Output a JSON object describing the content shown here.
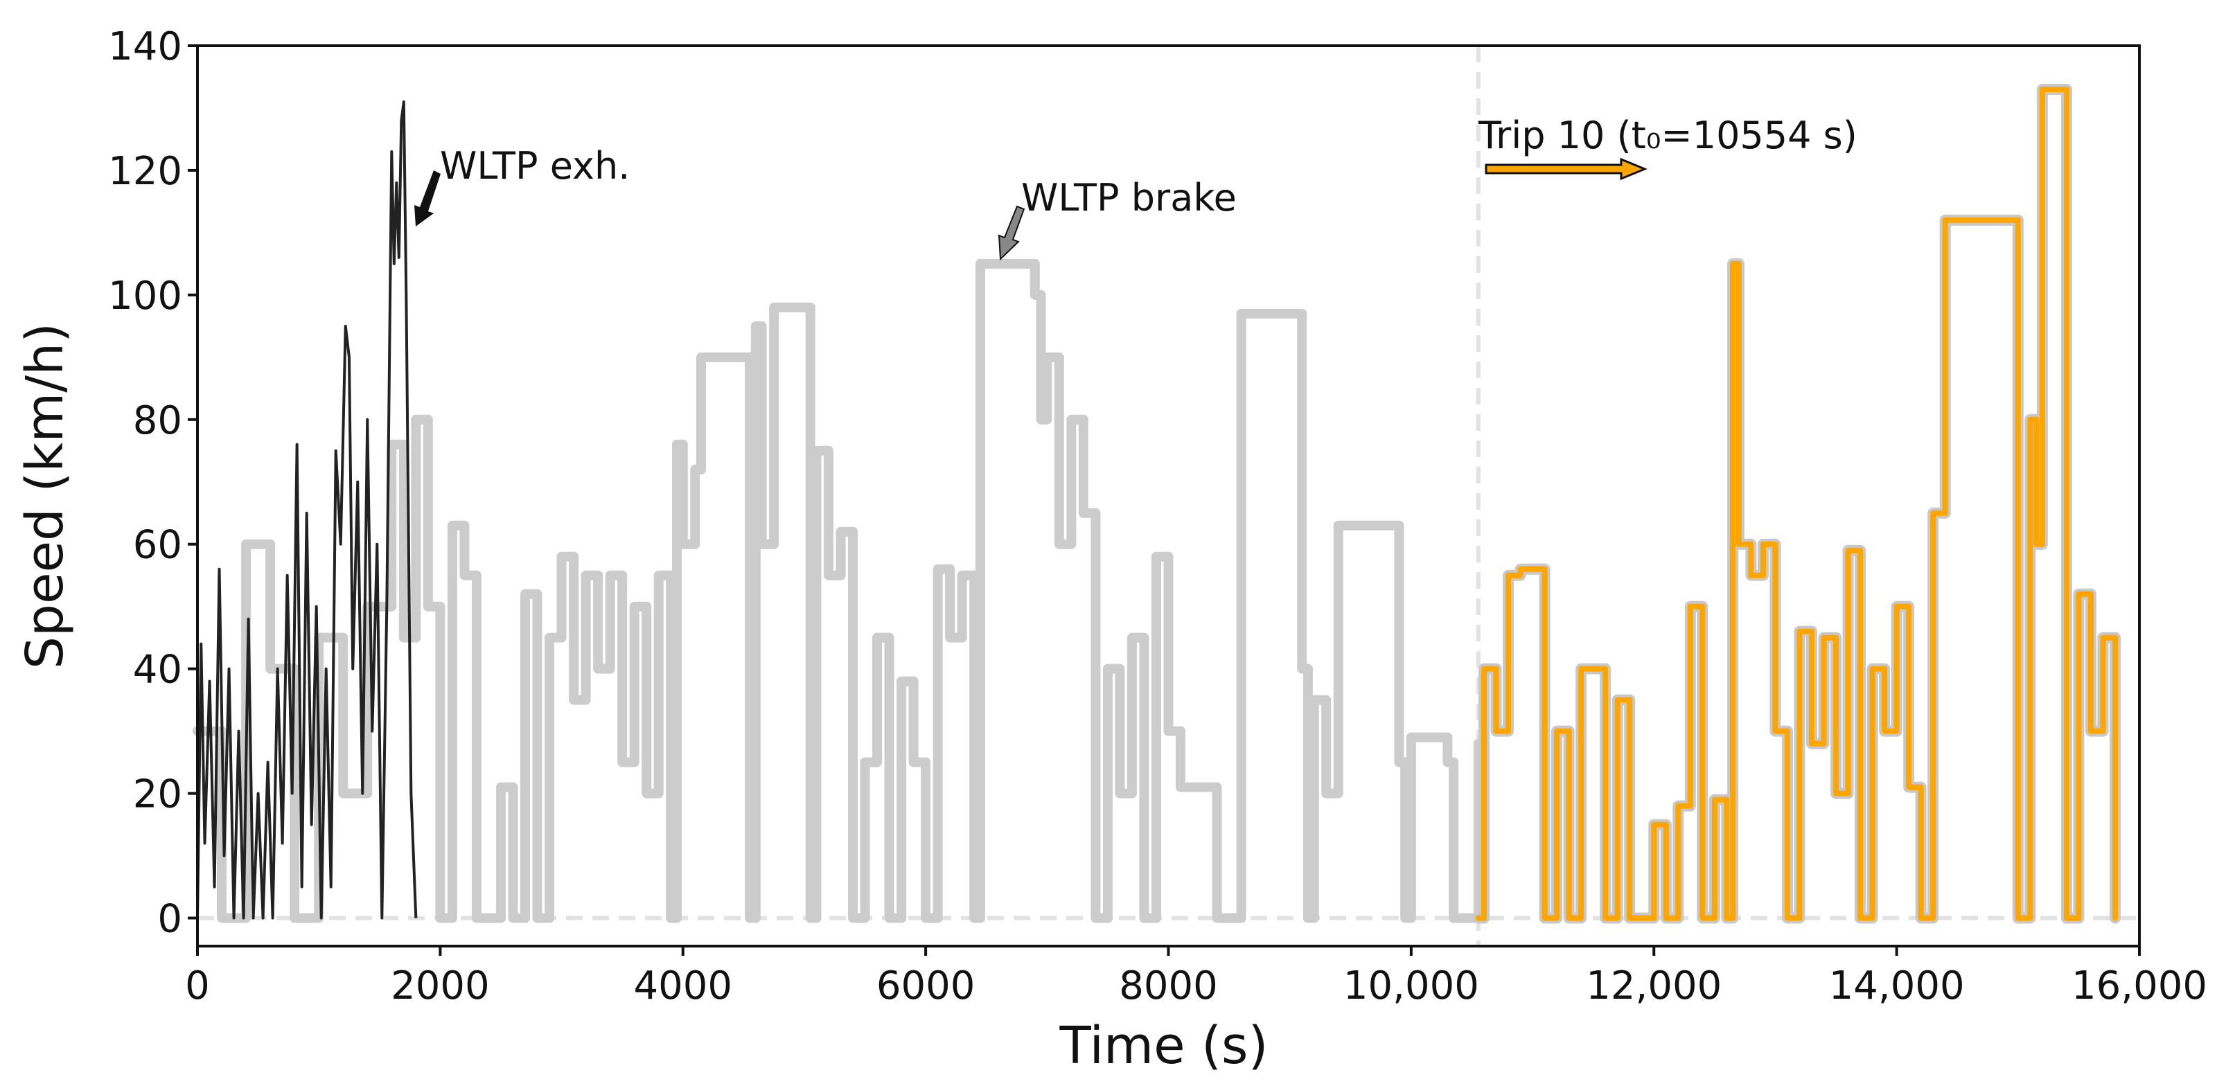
{
  "chart_data": {
    "type": "line",
    "xlabel": "Time (s)",
    "ylabel": "Speed (km/h)",
    "xlim": [
      0,
      16000
    ],
    "ylim": [
      -4.5,
      140
    ],
    "xticks": [
      0,
      2000,
      4000,
      6000,
      8000,
      {
        "value": 10000,
        "label": "10,000"
      },
      {
        "value": 12000,
        "label": "12,000"
      },
      {
        "value": 14000,
        "label": "14,000"
      },
      {
        "value": 16000,
        "label": "16,000"
      }
    ],
    "yticks": [
      0,
      20,
      40,
      60,
      80,
      100,
      120,
      140
    ],
    "zero_line": true,
    "vline": 10554,
    "annotations": [
      "WLTP exh.",
      "WLTP brake",
      "Trip 10 (t₀=10554 s)"
    ],
    "series": [
      {
        "color": "#cccccc",
        "drawstyle": "steps",
        "x": [
          0,
          200,
          400,
          600,
          800,
          1000,
          1200,
          1400,
          1600,
          1700,
          1800,
          1900,
          2000,
          2100,
          2200,
          2300,
          2500,
          2600,
          2700,
          2800,
          2900,
          3000,
          3100,
          3200,
          3300,
          3400,
          3500,
          3600,
          3700,
          3800,
          3900,
          3950,
          4000,
          4100,
          4150,
          4550,
          4600,
          4650,
          4750,
          5050,
          5100,
          5200,
          5300,
          5400,
          5500,
          5600,
          5700,
          5800,
          5900,
          6000,
          6100,
          6200,
          6300,
          6400,
          6450,
          6900,
          6950,
          7000,
          7100,
          7200,
          7300,
          7400,
          7500,
          7600,
          7700,
          7800,
          7900,
          8000,
          8100,
          8400,
          8600,
          9100,
          9150,
          9200,
          9300,
          9400,
          9900,
          9950,
          10000,
          10300,
          10350,
          10554
        ],
        "values": [
          30,
          0,
          60,
          40,
          0,
          45,
          20,
          50,
          76,
          45,
          80,
          50,
          0,
          63,
          55,
          0,
          21,
          0,
          52,
          0,
          45,
          58,
          35,
          55,
          40,
          55,
          25,
          50,
          20,
          55,
          0,
          76,
          60,
          72,
          90,
          0,
          95,
          60,
          98,
          0,
          75,
          55,
          62,
          0,
          25,
          45,
          0,
          38,
          25,
          0,
          56,
          45,
          55,
          0,
          105,
          100,
          80,
          90,
          60,
          80,
          65,
          0,
          40,
          20,
          45,
          0,
          58,
          30,
          21,
          0,
          97,
          40,
          0,
          35,
          20,
          63,
          25,
          0,
          29,
          25,
          0,
          28
        ]
      },
      {
        "color": "#222222",
        "drawstyle": "line",
        "x": [
          0,
          30,
          60,
          100,
          140,
          180,
          220,
          260,
          300,
          340,
          380,
          420,
          460,
          500,
          540,
          580,
          620,
          660,
          700,
          740,
          780,
          820,
          860,
          900,
          940,
          980,
          1020,
          1060,
          1100,
          1140,
          1180,
          1220,
          1250,
          1280,
          1320,
          1360,
          1400,
          1440,
          1480,
          1520,
          1560,
          1600,
          1620,
          1640,
          1660,
          1680,
          1700,
          1720,
          1740,
          1760,
          1800
        ],
        "values": [
          0,
          44,
          12,
          38,
          5,
          56,
          10,
          40,
          0,
          30,
          0,
          48,
          0,
          20,
          0,
          25,
          0,
          40,
          12,
          55,
          20,
          76,
          5,
          65,
          15,
          50,
          0,
          40,
          5,
          75,
          60,
          95,
          90,
          40,
          70,
          20,
          80,
          30,
          60,
          0,
          50,
          123,
          105,
          118,
          106,
          128,
          131,
          100,
          60,
          20,
          0
        ]
      },
      {
        "color": "#ffa500",
        "outline": "#c8c8c8",
        "drawstyle": "steps",
        "x": [
          10554,
          10600,
          10700,
          10800,
          10900,
          11100,
          11200,
          11300,
          11400,
          11600,
          11700,
          11800,
          11900,
          12000,
          12100,
          12200,
          12300,
          12400,
          12500,
          12600,
          12650,
          12700,
          12800,
          12900,
          13000,
          13100,
          13200,
          13300,
          13400,
          13500,
          13600,
          13700,
          13800,
          13900,
          14000,
          14100,
          14200,
          14300,
          14400,
          15000,
          15100,
          15150,
          15200,
          15400,
          15500,
          15600,
          15700,
          15800
        ],
        "values": [
          0,
          40,
          30,
          55,
          56,
          0,
          30,
          0,
          40,
          0,
          35,
          0,
          0,
          15,
          0,
          18,
          50,
          0,
          19,
          0,
          105,
          60,
          55,
          60,
          30,
          0,
          46,
          28,
          45,
          20,
          59,
          0,
          40,
          30,
          50,
          21,
          0,
          65,
          112,
          0,
          80,
          60,
          133,
          0,
          52,
          30,
          45,
          0
        ]
      }
    ]
  }
}
